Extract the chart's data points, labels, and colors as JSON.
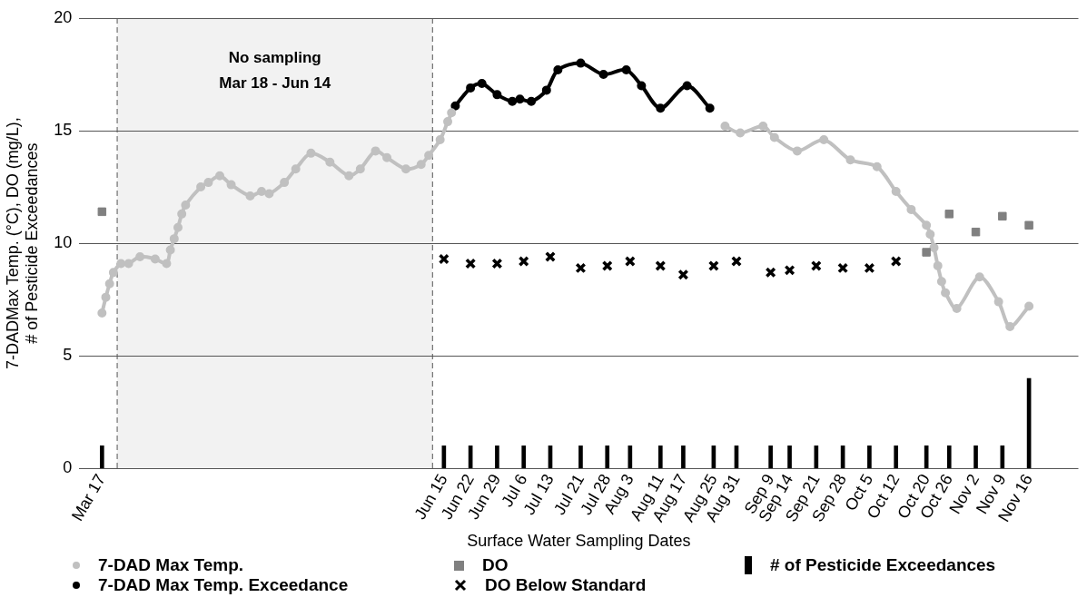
{
  "chart_data": {
    "type": "line",
    "ylabel": "7-DADMax Temp. (°C), DO (mg/L),\n# of Pesticide Exceedances",
    "xlabel": "Surface Water Sampling Dates",
    "xlim": [
      "--03-11",
      "--11-29"
    ],
    "ylim": [
      0,
      20
    ],
    "yticks": [
      0,
      5,
      10,
      15,
      20
    ],
    "xticks": [
      {
        "value": "--03-17",
        "label": "Mar 17"
      },
      {
        "value": "--06-15",
        "label": "Jun 15"
      },
      {
        "value": "--06-22",
        "label": "Jun 22"
      },
      {
        "value": "--06-29",
        "label": "Jun 29"
      },
      {
        "value": "--07-06",
        "label": "Jul 6"
      },
      {
        "value": "--07-13",
        "label": "Jul 13"
      },
      {
        "value": "--07-21",
        "label": "Jul 21"
      },
      {
        "value": "--07-28",
        "label": "Jul 28"
      },
      {
        "value": "--08-03",
        "label": "Aug 3"
      },
      {
        "value": "--08-11",
        "label": "Aug 11"
      },
      {
        "value": "--08-17",
        "label": "Aug 17"
      },
      {
        "value": "--08-25",
        "label": "Aug 25"
      },
      {
        "value": "--08-31",
        "label": "Aug 31"
      },
      {
        "value": "--09-09",
        "label": "Sep 9"
      },
      {
        "value": "--09-14",
        "label": "Sep 14"
      },
      {
        "value": "--09-21",
        "label": "Sep 21"
      },
      {
        "value": "--09-28",
        "label": "Sep 28"
      },
      {
        "value": "--10-05",
        "label": "Oct 5"
      },
      {
        "value": "--10-12",
        "label": "Oct 12"
      },
      {
        "value": "--10-20",
        "label": "Oct 20"
      },
      {
        "value": "--10-26",
        "label": "Oct 26"
      },
      {
        "value": "--11-02",
        "label": "Nov 2"
      },
      {
        "value": "--11-09",
        "label": "Nov 9"
      },
      {
        "value": "--11-16",
        "label": "Nov 16"
      }
    ],
    "grid": "y",
    "legend": "bottom",
    "bands": [
      {
        "axis": "x",
        "from": "--03-21",
        "to": "--06-12",
        "label": "No sampling\nMar 18 - Jun 14",
        "color": "#f2f2f2"
      }
    ],
    "ref_lines": [
      {
        "axis": "x",
        "value": "--03-21",
        "color": "#555555",
        "line_style": "dashed"
      },
      {
        "axis": "x",
        "value": "--06-12",
        "color": "#555555",
        "line_style": "dashed"
      }
    ],
    "series": [
      {
        "name": "7-DAD Max Temp.",
        "color": "#c0c0c0",
        "marker": "circle",
        "x": [
          "--03-17",
          "--03-18",
          "--03-19",
          "--03-20",
          "--03-22",
          "--03-24",
          "--03-27",
          "--03-31",
          "--04-03",
          "--04-04",
          "--04-05",
          "--04-06",
          "--04-07",
          "--04-08",
          "--04-12",
          "--04-14",
          "--04-17",
          "--04-20",
          "--04-25",
          "--04-28",
          "--04-30",
          "--05-04",
          "--05-07",
          "--05-11",
          "--05-16",
          "--05-21",
          "--05-24",
          "--05-28",
          "--05-31",
          "--06-05",
          "--06-09",
          "--06-11",
          "--06-14",
          "--06-16",
          "--06-17",
          "--07-20",
          "--08-28",
          "--09-01",
          "--09-07",
          "--09-10",
          "--09-16",
          "--09-23",
          "--09-30",
          "--10-07",
          "--10-12",
          "--10-16",
          "--10-20",
          "--10-21",
          "--10-22",
          "--10-23",
          "--10-24",
          "--10-25",
          "--10-28",
          "--11-03",
          "--11-08",
          "--11-11",
          "--11-16"
        ],
        "values": [
          6.9,
          7.6,
          8.2,
          8.7,
          9.1,
          9.1,
          9.4,
          9.3,
          9.1,
          9.7,
          10.2,
          10.7,
          11.3,
          11.7,
          12.5,
          12.7,
          13.0,
          12.6,
          12.1,
          12.3,
          12.2,
          12.7,
          13.3,
          14.0,
          13.6,
          13.0,
          13.3,
          14.1,
          13.8,
          13.3,
          13.5,
          13.9,
          14.6,
          15.4,
          15.8,
          null,
          15.2,
          14.9,
          15.2,
          14.7,
          14.1,
          14.6,
          13.7,
          13.4,
          12.3,
          11.5,
          10.8,
          10.4,
          9.8,
          9.0,
          8.3,
          7.8,
          7.1,
          8.5,
          7.4,
          6.3,
          7.2
        ]
      },
      {
        "name": "7-DAD Max Temp. Exceedance",
        "color": "#000000",
        "marker": "circle",
        "x": [
          "--06-18",
          "--06-22",
          "--06-25",
          "--06-29",
          "--07-03",
          "--07-05",
          "--07-08",
          "--07-12",
          "--07-15",
          "--07-21",
          "--07-27",
          "--08-02",
          "--08-06",
          "--08-11",
          "--08-18",
          "--08-24"
        ],
        "values": [
          16.1,
          16.9,
          17.1,
          16.6,
          16.3,
          16.4,
          16.3,
          16.8,
          17.7,
          18.0,
          17.5,
          17.7,
          17.0,
          16.0,
          17.0,
          16.0
        ]
      },
      {
        "name": "DO",
        "type": "scatter",
        "color": "#808080",
        "marker": "square",
        "x": [
          "--03-17",
          "--10-20",
          "--10-26",
          "--11-02",
          "--11-09",
          "--11-16"
        ],
        "values": [
          11.4,
          9.6,
          11.3,
          10.5,
          11.2,
          10.8
        ]
      },
      {
        "name": "DO Below Standard",
        "type": "scatter",
        "color": "#000000",
        "marker": "cross",
        "x": [
          "--06-15",
          "--06-22",
          "--06-29",
          "--07-06",
          "--07-13",
          "--07-21",
          "--07-28",
          "--08-03",
          "--08-11",
          "--08-17",
          "--08-25",
          "--08-31",
          "--09-09",
          "--09-14",
          "--09-21",
          "--09-28",
          "--10-05",
          "--10-12"
        ],
        "values": [
          9.3,
          9.1,
          9.1,
          9.2,
          9.4,
          8.9,
          9.0,
          9.2,
          9.0,
          8.6,
          9.0,
          9.2,
          8.7,
          8.8,
          9.0,
          8.9,
          8.9,
          9.2
        ]
      },
      {
        "name": "# of Pesticide Exceedances",
        "type": "bar",
        "color": "#000000",
        "x": [
          "--03-17",
          "--06-15",
          "--06-22",
          "--06-29",
          "--07-06",
          "--07-13",
          "--07-21",
          "--07-28",
          "--08-03",
          "--08-11",
          "--08-17",
          "--08-25",
          "--08-31",
          "--09-09",
          "--09-14",
          "--09-21",
          "--09-28",
          "--10-05",
          "--10-12",
          "--10-20",
          "--10-26",
          "--11-02",
          "--11-09",
          "--11-16"
        ],
        "values": [
          1,
          1,
          1,
          1,
          1,
          1,
          1,
          1,
          1,
          1,
          1,
          1,
          1,
          1,
          1,
          1,
          1,
          1,
          1,
          1,
          1,
          1,
          1,
          4
        ]
      }
    ]
  }
}
